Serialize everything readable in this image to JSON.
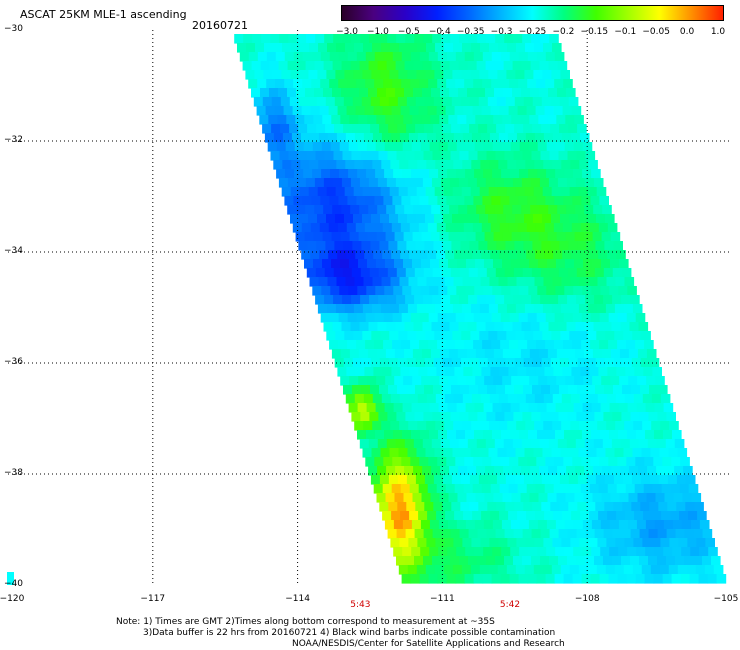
{
  "header": {
    "title": "ASCAT 25KM MLE-1 ascending",
    "date": "20160721"
  },
  "colorbar": {
    "labels": [
      "-3.0",
      "-1.0",
      "-0.5",
      "-0.4",
      "-0.35",
      "-0.3",
      "-0.25",
      "-0.2",
      "-0.15",
      "-0.1",
      "-0.05",
      "0.0",
      "1.0"
    ],
    "colors": [
      "#2a0028",
      "#4a0080",
      "#2a00c8",
      "#0020ff",
      "#0066ff",
      "#00b4ff",
      "#00ffff",
      "#00ff80",
      "#40ff00",
      "#a0ff00",
      "#ffff00",
      "#ff9000",
      "#ff2000"
    ]
  },
  "chart_data": {
    "type": "heatmap",
    "title": "ASCAT 25KM MLE-1 ascending",
    "x_tick_labels": [
      "-120",
      "-117",
      "-114",
      "-111",
      "-108",
      "-105"
    ],
    "y_tick_labels": [
      "-30",
      "-32",
      "-34",
      "-36",
      "-38",
      "-40"
    ],
    "xlim": [
      -120,
      -105
    ],
    "ylim": [
      -40,
      -30
    ],
    "grid": true,
    "swath_time_labels": [
      {
        "text": "5:43",
        "lon": -112.7
      },
      {
        "text": "5:42",
        "lon": -109.6
      }
    ]
  },
  "footer": {
    "note_line1": "Note: 1) Times are GMT 2)Times along bottom correspond to measurement at ~35S",
    "note_line2": "3)Data buffer is 22 hrs from 20160721 4) Black wind barbs indicate possible contamination",
    "note_line3": "NOAA/NESDIS/Center for Satellite Applications and Research"
  }
}
